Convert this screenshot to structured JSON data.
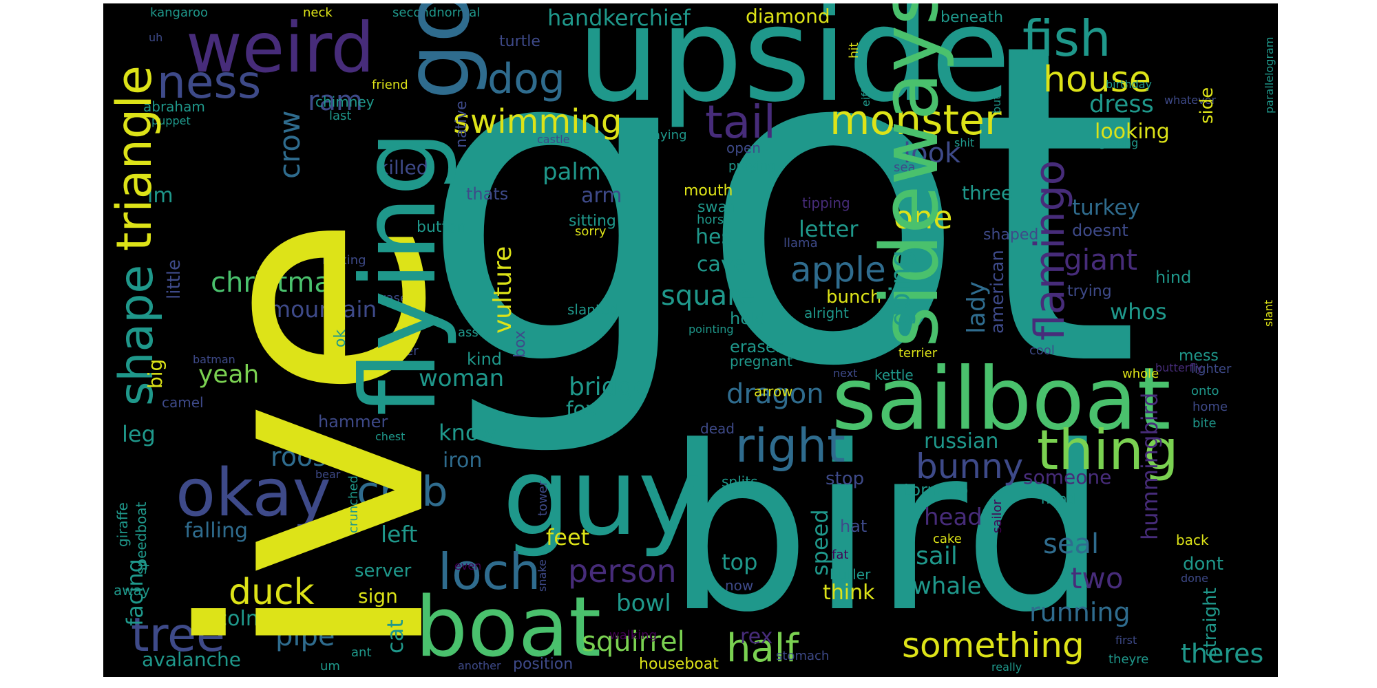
{
  "background": "#000000",
  "palette": {
    "yellow": "#dde318",
    "lime": "#7ad151",
    "green": "#4ac16d",
    "teal": "#1f988b",
    "tealdark": "#218f8d",
    "blue": "#2f6c8e",
    "indigo": "#3e4a89",
    "purple": "#472c7a",
    "violet": "#440154"
  },
  "words": [
    {
      "text": "got",
      "color": "teal"
    },
    {
      "text": "ive",
      "color": "yellow"
    },
    {
      "text": "bird",
      "color": "teal"
    },
    {
      "text": "upside",
      "color": "teal"
    },
    {
      "text": "sailboat",
      "color": "green"
    },
    {
      "text": "flying",
      "color": "teal"
    },
    {
      "text": "boat",
      "color": "green"
    },
    {
      "text": "guy",
      "color": "teal"
    },
    {
      "text": "weird",
      "color": "purple"
    },
    {
      "text": "sideways",
      "color": "green"
    },
    {
      "text": "okay",
      "color": "indigo"
    },
    {
      "text": "fish",
      "color": "teal"
    },
    {
      "text": "thing",
      "color": "lime"
    },
    {
      "text": "triangle",
      "color": "yellow"
    },
    {
      "text": "shape",
      "color": "teal"
    },
    {
      "text": "go",
      "color": "blue"
    },
    {
      "text": "ness",
      "color": "indigo"
    },
    {
      "text": "monster",
      "color": "yellow"
    },
    {
      "text": "tail",
      "color": "purple"
    },
    {
      "text": "right",
      "color": "blue"
    },
    {
      "text": "loch",
      "color": "blue"
    },
    {
      "text": "tree",
      "color": "indigo"
    },
    {
      "text": "crab",
      "color": "blue"
    },
    {
      "text": "dog",
      "color": "blue"
    },
    {
      "text": "house",
      "color": "yellow"
    },
    {
      "text": "flamingo",
      "color": "purple"
    },
    {
      "text": "swimming",
      "color": "yellow"
    },
    {
      "text": "half",
      "color": "lime"
    },
    {
      "text": "something",
      "color": "yellow"
    },
    {
      "text": "duck",
      "color": "yellow"
    },
    {
      "text": "bunny",
      "color": "indigo"
    },
    {
      "text": "apple",
      "color": "blue"
    },
    {
      "text": "christmas",
      "color": "green"
    },
    {
      "text": "crow",
      "color": "blue"
    },
    {
      "text": "ram",
      "color": "indigo"
    },
    {
      "text": "person",
      "color": "purple"
    },
    {
      "text": "squirrel",
      "color": "lime"
    },
    {
      "text": "handkerchief",
      "color": "teal"
    },
    {
      "text": "square",
      "color": "teal"
    },
    {
      "text": "one",
      "color": "yellow"
    },
    {
      "text": "running",
      "color": "blue"
    },
    {
      "text": "dragon",
      "color": "blue"
    },
    {
      "text": "giant",
      "color": "purple"
    },
    {
      "text": "diamond",
      "color": "yellow"
    },
    {
      "text": "dress",
      "color": "teal"
    },
    {
      "text": "look",
      "color": "indigo"
    },
    {
      "text": "palm",
      "color": "teal"
    },
    {
      "text": "going",
      "color": "teal"
    },
    {
      "text": "mountain",
      "color": "indigo"
    },
    {
      "text": "rooster",
      "color": "blue"
    },
    {
      "text": "woman",
      "color": "teal"
    },
    {
      "text": "theres",
      "color": "teal"
    },
    {
      "text": "hummingbird",
      "color": "purple"
    },
    {
      "text": "bridge",
      "color": "teal"
    },
    {
      "text": "vulture",
      "color": "yellow"
    },
    {
      "text": "looking",
      "color": "yellow"
    },
    {
      "text": "lady",
      "color": "blue"
    },
    {
      "text": "yeah",
      "color": "lime"
    },
    {
      "text": "turkey",
      "color": "blue"
    },
    {
      "text": "letter",
      "color": "teal"
    },
    {
      "text": "whos",
      "color": "teal"
    },
    {
      "text": "russian",
      "color": "teal"
    },
    {
      "text": "two",
      "color": "purple"
    },
    {
      "text": "seal",
      "color": "blue"
    },
    {
      "text": "sail",
      "color": "teal"
    },
    {
      "text": "whale",
      "color": "teal"
    },
    {
      "text": "head",
      "color": "purple"
    },
    {
      "text": "pipe",
      "color": "blue"
    },
    {
      "text": "speed",
      "color": "teal"
    },
    {
      "text": "bowl",
      "color": "teal"
    },
    {
      "text": "killed",
      "color": "indigo"
    },
    {
      "text": "hes",
      "color": "teal"
    },
    {
      "text": "cave",
      "color": "teal"
    },
    {
      "text": "arm",
      "color": "indigo"
    },
    {
      "text": "three",
      "color": "teal"
    },
    {
      "text": "fox",
      "color": "teal"
    },
    {
      "text": "know",
      "color": "teal"
    },
    {
      "text": "leg",
      "color": "teal"
    },
    {
      "text": "im",
      "color": "teal"
    },
    {
      "text": "left",
      "color": "teal"
    },
    {
      "text": "feet",
      "color": "yellow"
    },
    {
      "text": "top",
      "color": "teal"
    },
    {
      "text": "big",
      "color": "yellow"
    },
    {
      "text": "little",
      "color": "indigo"
    },
    {
      "text": "iron",
      "color": "blue"
    },
    {
      "text": "falling",
      "color": "blue"
    },
    {
      "text": "facing",
      "color": "teal"
    },
    {
      "text": "cat",
      "color": "teal"
    },
    {
      "text": "rex",
      "color": "purple"
    },
    {
      "text": "lincoln",
      "color": "teal"
    },
    {
      "text": "sign",
      "color": "yellow"
    },
    {
      "text": "think",
      "color": "yellow"
    },
    {
      "text": "avalanche",
      "color": "teal"
    },
    {
      "text": "server",
      "color": "teal"
    },
    {
      "text": "thats",
      "color": "indigo"
    },
    {
      "text": "kind",
      "color": "teal"
    },
    {
      "text": "hammer",
      "color": "indigo"
    },
    {
      "text": "eraser",
      "color": "teal"
    },
    {
      "text": "bunch",
      "color": "yellow"
    },
    {
      "text": "hold",
      "color": "teal"
    },
    {
      "text": "tornado",
      "color": "teal"
    },
    {
      "text": "stop",
      "color": "indigo"
    },
    {
      "text": "someone",
      "color": "purple"
    },
    {
      "text": "dont",
      "color": "teal"
    },
    {
      "text": "straight",
      "color": "teal"
    },
    {
      "text": "side",
      "color": "yellow"
    },
    {
      "text": "american",
      "color": "indigo"
    },
    {
      "text": "mess",
      "color": "teal"
    },
    {
      "text": "shaped",
      "color": "indigo"
    },
    {
      "text": "doesnt",
      "color": "indigo"
    },
    {
      "text": "hind",
      "color": "teal"
    },
    {
      "text": "trying",
      "color": "indigo"
    },
    {
      "text": "houseboat",
      "color": "yellow"
    },
    {
      "text": "butler",
      "color": "teal"
    },
    {
      "text": "hat",
      "color": "indigo"
    },
    {
      "text": "mouth",
      "color": "yellow"
    },
    {
      "text": "swan",
      "color": "teal"
    },
    {
      "text": "sitting",
      "color": "teal"
    },
    {
      "text": "sorry",
      "color": "yellow"
    },
    {
      "text": "button",
      "color": "teal"
    },
    {
      "text": "ok",
      "color": "teal"
    },
    {
      "text": "box",
      "color": "indigo"
    },
    {
      "text": "turtle",
      "color": "indigo"
    },
    {
      "text": "native",
      "color": "indigo"
    },
    {
      "text": "beneath",
      "color": "teal"
    },
    {
      "text": "pregnant",
      "color": "teal"
    },
    {
      "text": "kicking",
      "color": "indigo"
    },
    {
      "text": "chimney",
      "color": "teal"
    },
    {
      "text": "abraham",
      "color": "teal"
    },
    {
      "text": "camel",
      "color": "indigo"
    },
    {
      "text": "speedboat",
      "color": "teal"
    },
    {
      "text": "giraffe",
      "color": "teal"
    },
    {
      "text": "away",
      "color": "teal"
    },
    {
      "text": "back",
      "color": "yellow"
    },
    {
      "text": "dead",
      "color": "indigo"
    },
    {
      "text": "arrow",
      "color": "yellow"
    },
    {
      "text": "splits",
      "color": "teal"
    },
    {
      "text": "hand",
      "color": "teal"
    },
    {
      "text": "lighter",
      "color": "indigo"
    },
    {
      "text": "onto",
      "color": "teal"
    },
    {
      "text": "home",
      "color": "indigo"
    },
    {
      "text": "bite",
      "color": "teal"
    },
    {
      "text": "whole",
      "color": "yellow"
    },
    {
      "text": "cool",
      "color": "indigo"
    },
    {
      "text": "next",
      "color": "indigo"
    },
    {
      "text": "kettle",
      "color": "teal"
    },
    {
      "text": "terrier",
      "color": "yellow"
    },
    {
      "text": "tower",
      "color": "indigo"
    },
    {
      "text": "snake",
      "color": "indigo"
    },
    {
      "text": "crunched",
      "color": "teal"
    },
    {
      "text": "chest",
      "color": "teal"
    },
    {
      "text": "bear",
      "color": "indigo"
    },
    {
      "text": "eater",
      "color": "indigo"
    },
    {
      "text": "batman",
      "color": "indigo"
    },
    {
      "text": "vase",
      "color": "indigo"
    },
    {
      "text": "ass",
      "color": "teal"
    },
    {
      "text": "slanted",
      "color": "teal"
    },
    {
      "text": "alright",
      "color": "teal"
    },
    {
      "text": "llama",
      "color": "indigo"
    },
    {
      "text": "horse",
      "color": "teal"
    },
    {
      "text": "tipping",
      "color": "purple"
    },
    {
      "text": "pointing",
      "color": "teal"
    },
    {
      "text": "praying",
      "color": "teal"
    },
    {
      "text": "open",
      "color": "indigo"
    },
    {
      "text": "laying",
      "color": "teal"
    },
    {
      "text": "castle",
      "color": "indigo"
    },
    {
      "text": "friend",
      "color": "yellow"
    },
    {
      "text": "last",
      "color": "teal"
    },
    {
      "text": "puppet",
      "color": "teal"
    },
    {
      "text": "uh",
      "color": "indigo"
    },
    {
      "text": "kangaroo",
      "color": "teal"
    },
    {
      "text": "neck",
      "color": "yellow"
    },
    {
      "text": "secondnormal",
      "color": "teal"
    },
    {
      "text": "hit",
      "color": "yellow"
    },
    {
      "text": "eiffel",
      "color": "teal"
    },
    {
      "text": "shit",
      "color": "teal"
    },
    {
      "text": "sea",
      "color": "indigo"
    },
    {
      "text": "getting",
      "color": "teal"
    },
    {
      "text": "birthday",
      "color": "teal"
    },
    {
      "text": "whatever",
      "color": "indigo"
    },
    {
      "text": "butt",
      "color": "teal"
    },
    {
      "text": "parallelogram",
      "color": "teal"
    },
    {
      "text": "butterfly",
      "color": "purple"
    },
    {
      "text": "now",
      "color": "indigo"
    },
    {
      "text": "fat",
      "color": "violet"
    },
    {
      "text": "cake",
      "color": "yellow"
    },
    {
      "text": "slant",
      "color": "yellow"
    },
    {
      "text": "done",
      "color": "indigo"
    },
    {
      "text": "even",
      "color": "violet"
    },
    {
      "text": "walking",
      "color": "violet"
    },
    {
      "text": "ant",
      "color": "teal"
    },
    {
      "text": "um",
      "color": "teal"
    },
    {
      "text": "another",
      "color": "indigo"
    },
    {
      "text": "position",
      "color": "indigo"
    },
    {
      "text": "stomach",
      "color": "indigo"
    },
    {
      "text": "first",
      "color": "indigo"
    },
    {
      "text": "theyre",
      "color": "teal"
    },
    {
      "text": "really",
      "color": "teal"
    },
    {
      "text": "sailor",
      "color": "violet"
    }
  ]
}
